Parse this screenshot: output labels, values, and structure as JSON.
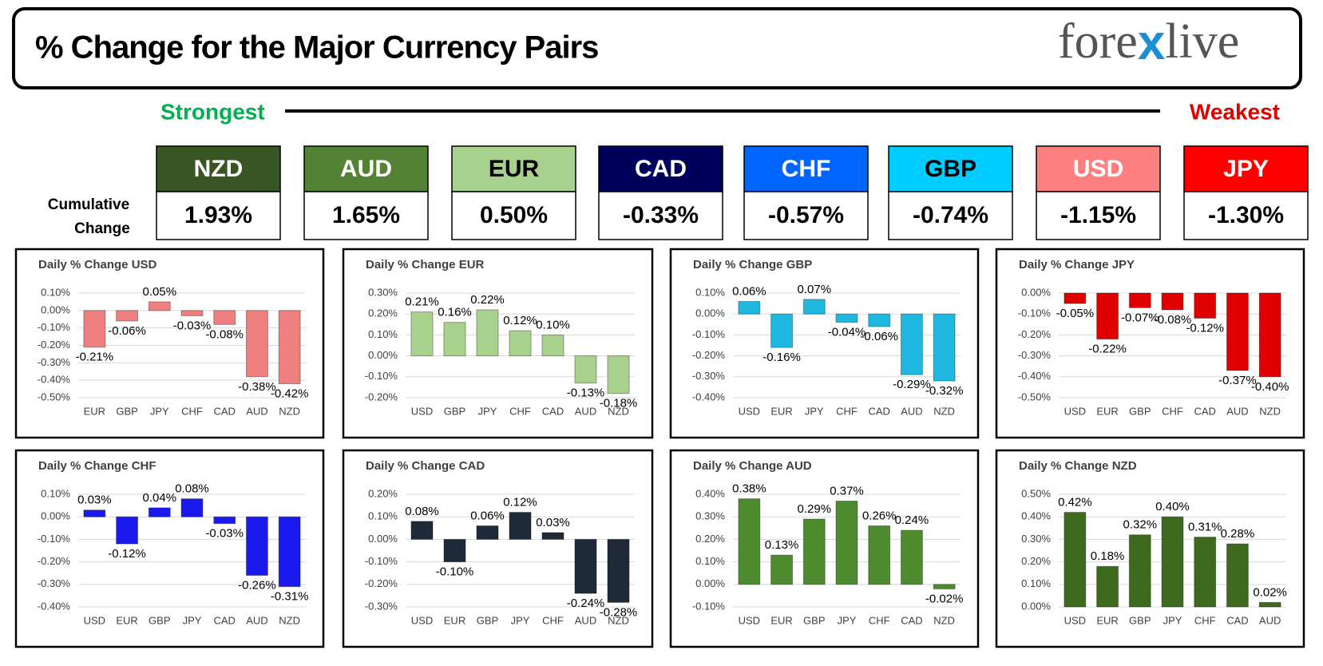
{
  "header": {
    "title": "% Change for the Major Currency Pairs",
    "logo": [
      "fore",
      "x",
      "live"
    ]
  },
  "scale": {
    "strongest": "Strongest",
    "weakest": "Weakest"
  },
  "cumulative": {
    "label": [
      "Cumulative",
      "Change"
    ],
    "currencies": [
      {
        "name": "NZD",
        "change": "1.93%",
        "color": "#375623",
        "text_color": "#ffffff"
      },
      {
        "name": "AUD",
        "change": "1.65%",
        "color": "#548235",
        "text_color": "#ffffff"
      },
      {
        "name": "EUR",
        "change": "0.50%",
        "color": "#a9d18e",
        "text_color": "#000000"
      },
      {
        "name": "CAD",
        "change": "-0.33%",
        "color": "#00005c",
        "text_color": "#ffffff"
      },
      {
        "name": "CHF",
        "change": "-0.57%",
        "color": "#0066ff",
        "text_color": "#ffffff"
      },
      {
        "name": "GBP",
        "change": "-0.74%",
        "color": "#00ccff",
        "text_color": "#000000"
      },
      {
        "name": "USD",
        "change": "-1.15%",
        "color": "#ff8080",
        "text_color": "#ffffff"
      },
      {
        "name": "JPY",
        "change": "-1.30%",
        "color": "#ff0000",
        "text_color": "#ffffff"
      }
    ]
  },
  "chart_data": [
    {
      "type": "bar",
      "title": "Daily % Change USD",
      "color": "#f08080",
      "categories": [
        "EUR",
        "GBP",
        "JPY",
        "CHF",
        "CAD",
        "AUD",
        "NZD"
      ],
      "values": [
        -0.21,
        -0.06,
        0.05,
        -0.03,
        -0.08,
        -0.38,
        -0.42
      ],
      "value_labels": [
        "-0.21%",
        "-0.06%",
        "0.05%",
        "-0.03%",
        "-0.08%",
        "-0.38%",
        "-0.42%"
      ],
      "ylim": [
        -0.5,
        0.1
      ],
      "yticks": [
        {
          "value": 0.1,
          "label": "0.10%"
        },
        {
          "value": 0,
          "label": "0.00%"
        },
        {
          "value": -0.1,
          "label": "-0.10%"
        },
        {
          "value": -0.2,
          "label": "-0.20%"
        },
        {
          "value": -0.3,
          "label": "-0.30%"
        },
        {
          "value": -0.4,
          "label": "-0.40%"
        },
        {
          "value": -0.5,
          "label": "-0.50%"
        }
      ]
    },
    {
      "type": "bar",
      "title": "Daily % Change EUR",
      "color": "#a9d18e",
      "categories": [
        "USD",
        "GBP",
        "JPY",
        "CHF",
        "CAD",
        "AUD",
        "NZD"
      ],
      "values": [
        0.21,
        0.16,
        0.22,
        0.12,
        0.1,
        -0.13,
        -0.18
      ],
      "value_labels": [
        "0.21%",
        "0.16%",
        "0.22%",
        "0.12%",
        "0.10%",
        "-0.13%",
        "-0.18%"
      ],
      "ylim": [
        -0.2,
        0.3
      ],
      "yticks": [
        {
          "value": 0.3,
          "label": "0.30%"
        },
        {
          "value": 0.2,
          "label": "0.20%"
        },
        {
          "value": 0.1,
          "label": "0.10%"
        },
        {
          "value": 0,
          "label": "0.00%"
        },
        {
          "value": -0.1,
          "label": "-0.10%"
        },
        {
          "value": -0.2,
          "label": "-0.20%"
        }
      ]
    },
    {
      "type": "bar",
      "title": "Daily % Change GBP",
      "color": "#1fb8e0",
      "categories": [
        "USD",
        "EUR",
        "JPY",
        "CHF",
        "CAD",
        "AUD",
        "NZD"
      ],
      "values": [
        0.06,
        -0.16,
        0.07,
        -0.04,
        -0.06,
        -0.29,
        -0.32
      ],
      "value_labels": [
        "0.06%",
        "-0.16%",
        "0.07%",
        "-0.04%",
        "-0.06%",
        "-0.29%",
        "-0.32%"
      ],
      "ylim": [
        -0.4,
        0.1
      ],
      "yticks": [
        {
          "value": 0.1,
          "label": "0.10%"
        },
        {
          "value": 0,
          "label": "0.00%"
        },
        {
          "value": -0.1,
          "label": "-0.10%"
        },
        {
          "value": -0.2,
          "label": "-0.20%"
        },
        {
          "value": -0.3,
          "label": "-0.30%"
        },
        {
          "value": -0.4,
          "label": "-0.40%"
        }
      ]
    },
    {
      "type": "bar",
      "title": "Daily % Change JPY",
      "color": "#e00000",
      "categories": [
        "USD",
        "EUR",
        "GBP",
        "CHF",
        "CAD",
        "AUD",
        "NZD"
      ],
      "values": [
        -0.05,
        -0.22,
        -0.07,
        -0.08,
        -0.12,
        -0.37,
        -0.4
      ],
      "value_labels": [
        "-0.05%",
        "-0.22%",
        "-0.07%",
        "-0.08%",
        "-0.12%",
        "-0.37%",
        "-0.40%"
      ],
      "ylim": [
        -0.5,
        0
      ],
      "yticks": [
        {
          "value": 0,
          "label": "0.00%"
        },
        {
          "value": -0.1,
          "label": "-0.10%"
        },
        {
          "value": -0.2,
          "label": "-0.20%"
        },
        {
          "value": -0.3,
          "label": "-0.30%"
        },
        {
          "value": -0.4,
          "label": "-0.40%"
        },
        {
          "value": -0.5,
          "label": "-0.50%"
        }
      ]
    },
    {
      "type": "bar",
      "title": "Daily % Change CHF",
      "color": "#1a1aee",
      "categories": [
        "USD",
        "EUR",
        "GBP",
        "JPY",
        "CAD",
        "AUD",
        "NZD"
      ],
      "values": [
        0.03,
        -0.12,
        0.04,
        0.08,
        -0.03,
        -0.26,
        -0.31
      ],
      "value_labels": [
        "0.03%",
        "-0.12%",
        "0.04%",
        "0.08%",
        "-0.03%",
        "-0.26%",
        "-0.31%"
      ],
      "ylim": [
        -0.4,
        0.1
      ],
      "yticks": [
        {
          "value": 0.1,
          "label": "0.10%"
        },
        {
          "value": 0,
          "label": "0.00%"
        },
        {
          "value": -0.1,
          "label": "-0.10%"
        },
        {
          "value": -0.2,
          "label": "-0.20%"
        },
        {
          "value": -0.3,
          "label": "-0.30%"
        },
        {
          "value": -0.4,
          "label": "-0.40%"
        }
      ]
    },
    {
      "type": "bar",
      "title": "Daily % Change CAD",
      "color": "#1f2a38",
      "categories": [
        "USD",
        "EUR",
        "GBP",
        "JPY",
        "CHF",
        "AUD",
        "NZD"
      ],
      "values": [
        0.08,
        -0.1,
        0.06,
        0.12,
        0.03,
        -0.24,
        -0.28
      ],
      "value_labels": [
        "0.08%",
        "-0.10%",
        "0.06%",
        "0.12%",
        "0.03%",
        "-0.24%",
        "-0.28%"
      ],
      "ylim": [
        -0.3,
        0.2
      ],
      "yticks": [
        {
          "value": 0.2,
          "label": "0.20%"
        },
        {
          "value": 0.1,
          "label": "0.10%"
        },
        {
          "value": 0,
          "label": "0.00%"
        },
        {
          "value": -0.1,
          "label": "-0.10%"
        },
        {
          "value": -0.2,
          "label": "-0.20%"
        },
        {
          "value": -0.3,
          "label": "-0.30%"
        }
      ]
    },
    {
      "type": "bar",
      "title": "Daily % Change AUD",
      "color": "#4e8a2e",
      "categories": [
        "USD",
        "EUR",
        "GBP",
        "JPY",
        "CHF",
        "CAD",
        "NZD"
      ],
      "values": [
        0.38,
        0.13,
        0.29,
        0.37,
        0.26,
        0.24,
        -0.02
      ],
      "value_labels": [
        "0.38%",
        "0.13%",
        "0.29%",
        "0.37%",
        "0.26%",
        "0.24%",
        "-0.02%"
      ],
      "ylim": [
        -0.1,
        0.4
      ],
      "yticks": [
        {
          "value": 0.4,
          "label": "0.40%"
        },
        {
          "value": 0.3,
          "label": "0.30%"
        },
        {
          "value": 0.2,
          "label": "0.20%"
        },
        {
          "value": 0.1,
          "label": "0.10%"
        },
        {
          "value": 0,
          "label": "0.00%"
        },
        {
          "value": -0.1,
          "label": "-0.10%"
        }
      ]
    },
    {
      "type": "bar",
      "title": "Daily % Change NZD",
      "color": "#3e6a20",
      "categories": [
        "USD",
        "EUR",
        "GBP",
        "JPY",
        "CHF",
        "CAD",
        "AUD"
      ],
      "values": [
        0.42,
        0.18,
        0.32,
        0.4,
        0.31,
        0.28,
        0.02
      ],
      "value_labels": [
        "0.42%",
        "0.18%",
        "0.32%",
        "0.40%",
        "0.31%",
        "0.28%",
        "0.02%"
      ],
      "ylim": [
        0,
        0.5
      ],
      "yticks": [
        {
          "value": 0.5,
          "label": "0.50%"
        },
        {
          "value": 0.4,
          "label": "0.40%"
        },
        {
          "value": 0.3,
          "label": "0.30%"
        },
        {
          "value": 0.2,
          "label": "0.20%"
        },
        {
          "value": 0.1,
          "label": "0.10%"
        },
        {
          "value": 0,
          "label": "0.00%"
        }
      ]
    }
  ]
}
